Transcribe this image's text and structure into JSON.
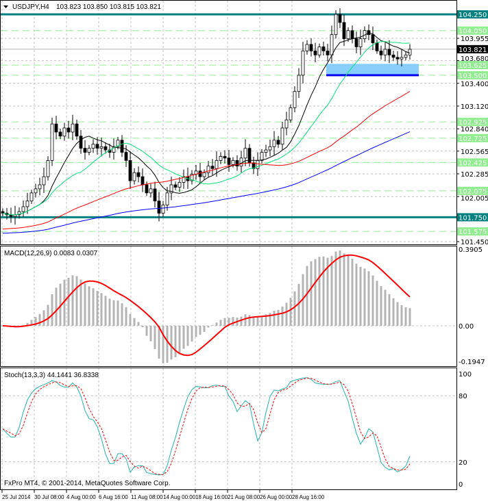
{
  "header": {
    "symbol": "USDJPY,H4",
    "ohlc": "103.823 103.850 103.815 103.821"
  },
  "copyright": "FxPro MT4, © 2001-2014, MetaQuotes Software Corp.",
  "colors": {
    "teal": "#008080",
    "green_level": "#90ee90",
    "current": "#000000",
    "zone": "#87cefa",
    "zone_line": "#0000ff",
    "ma_fast": "#000000",
    "ma_green": "#00e676",
    "ma_red": "#ff0000",
    "ma_blue": "#0000ff",
    "macd_hist": "#b4b4b4",
    "macd_signal": "#ff0000",
    "stoch_main": "#20b2aa",
    "stoch_signal": "#ff0000"
  },
  "chart_data": [
    {
      "type": "candlestick",
      "title": "USDJPY,H4",
      "ylim": [
        101.45,
        104.25
      ],
      "price_axis_ticks": [
        "103.955",
        "103.680",
        "103.400",
        "103.120",
        "102.840",
        "102.565",
        "102.285",
        "102.005",
        "101.450"
      ],
      "levels_teal": [
        {
          "value": 104.25,
          "label": "104.250"
        },
        {
          "value": 101.75,
          "label": "101.750"
        }
      ],
      "levels_green": [
        {
          "value": 104.05,
          "label": "104.050"
        },
        {
          "value": 103.625,
          "label": "103.625"
        },
        {
          "value": 103.5,
          "label": "103.500"
        },
        {
          "value": 102.925,
          "label": "102.925"
        },
        {
          "value": 102.725,
          "label": "102.725"
        },
        {
          "value": 102.425,
          "label": "102.425"
        },
        {
          "value": 102.075,
          "label": "102.075"
        },
        {
          "value": 101.575,
          "label": "101.575"
        }
      ],
      "current_price": {
        "value": 103.821,
        "label": "103.821"
      },
      "support_zone": {
        "from": 103.5,
        "to": 103.64,
        "start_bar": 79
      },
      "closes": [
        101.8,
        101.78,
        101.76,
        101.78,
        101.82,
        101.88,
        101.95,
        102.05,
        102.1,
        102.15,
        102.25,
        102.45,
        102.9,
        102.8,
        102.75,
        102.85,
        102.8,
        102.9,
        102.75,
        102.6,
        102.55,
        102.6,
        102.65,
        102.6,
        102.62,
        102.58,
        102.55,
        102.62,
        102.7,
        102.55,
        102.45,
        102.2,
        102.3,
        102.25,
        102.15,
        102.05,
        102.1,
        101.95,
        101.8,
        101.9,
        102.05,
        102.15,
        102.12,
        102.18,
        102.25,
        102.2,
        102.28,
        102.32,
        102.25,
        102.3,
        102.38,
        102.35,
        102.45,
        102.5,
        102.48,
        102.4,
        102.45,
        102.38,
        102.48,
        102.6,
        102.42,
        102.35,
        102.45,
        102.55,
        102.58,
        102.62,
        102.7,
        102.65,
        102.85,
        102.95,
        103.1,
        103.3,
        103.5,
        103.8,
        103.88,
        103.8,
        103.75,
        103.85,
        103.8,
        103.75,
        104.0,
        104.25,
        104.15,
        103.95,
        104.05,
        103.95,
        103.85,
        103.95,
        104.05,
        104.0,
        103.9,
        103.8,
        103.75,
        103.82,
        103.75,
        103.72,
        103.7,
        103.72,
        103.75,
        103.82
      ],
      "moving_averages": [
        10,
        20,
        50,
        100
      ],
      "time_labels": [
        "25 Jul 2014",
        "30 Jul 08:00",
        "4 Aug 00:00",
        "6 Aug 16:00",
        "11 Aug 08:00",
        "14 Aug 00:00",
        "18 Aug 16:00",
        "21 Aug 08:00",
        "26 Aug 00:00",
        "28 Aug 16:00"
      ]
    },
    {
      "type": "bar",
      "title": "MACD(12,26,9) 0.0083 0.0307",
      "ylim": [
        -0.1947,
        0.3905
      ],
      "ticks": [
        "0.3905",
        "0.00",
        "-0.1947"
      ]
    },
    {
      "type": "line",
      "title": "Stoch(13,3,3) 44.1441 36.8338",
      "ylim": [
        0,
        100
      ],
      "ticks": [
        "100",
        "80",
        "20",
        "0"
      ]
    }
  ]
}
